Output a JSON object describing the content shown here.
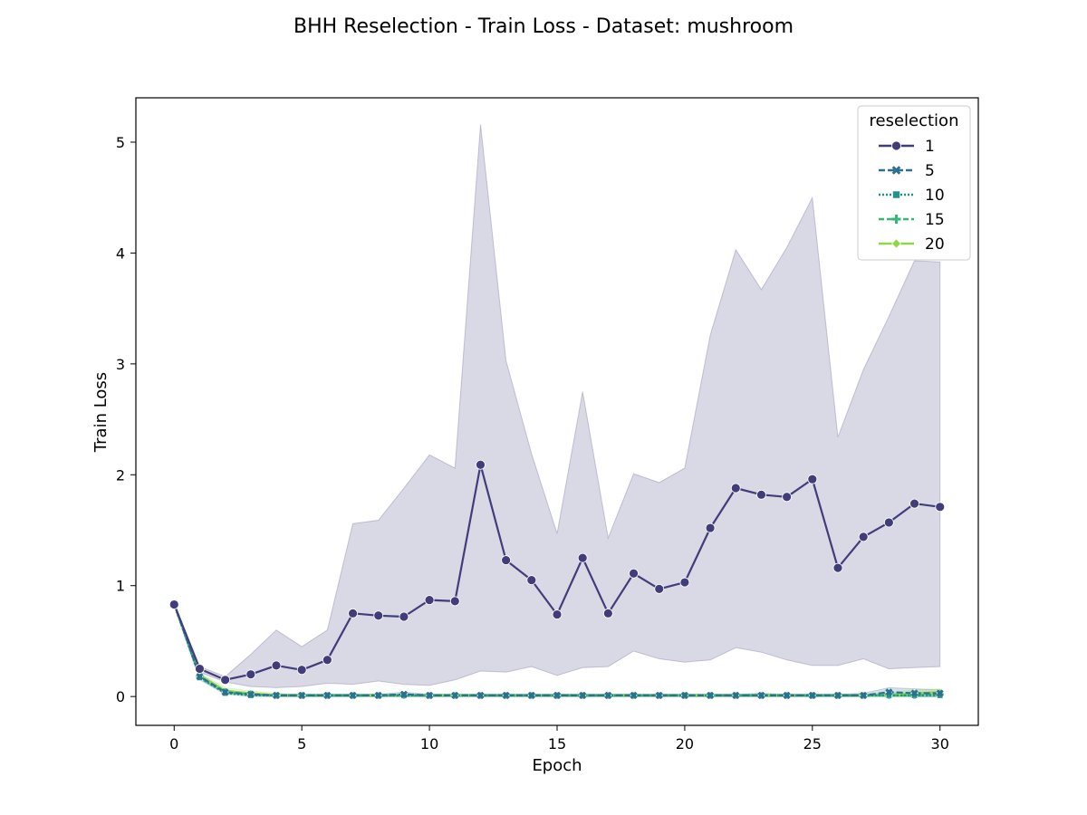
{
  "chart_data": {
    "type": "line",
    "title": "BHH Reselection - Train Loss - Dataset: mushroom",
    "xlabel": "Epoch",
    "ylabel": "Train Loss",
    "xlim": [
      -1.5,
      31.5
    ],
    "ylim": [
      -0.26,
      5.4
    ],
    "xticks": [
      0,
      5,
      10,
      15,
      20,
      25,
      30
    ],
    "yticks": [
      0,
      1,
      2,
      3,
      4,
      5
    ],
    "grid": false,
    "legend": {
      "title": "reselection",
      "placement": "top-right"
    },
    "x": [
      0,
      1,
      2,
      3,
      4,
      5,
      6,
      7,
      8,
      9,
      10,
      11,
      12,
      13,
      14,
      15,
      16,
      17,
      18,
      19,
      20,
      21,
      22,
      23,
      24,
      25,
      26,
      27,
      28,
      29,
      30
    ],
    "series": [
      {
        "name": "1",
        "color": "#413d7b",
        "dash": "",
        "marker": "circle",
        "values": [
          0.83,
          0.25,
          0.15,
          0.2,
          0.28,
          0.24,
          0.33,
          0.75,
          0.73,
          0.72,
          0.87,
          0.86,
          2.09,
          1.23,
          1.05,
          0.74,
          1.25,
          0.75,
          1.11,
          0.97,
          1.03,
          1.52,
          1.88,
          1.82,
          1.8,
          1.96,
          1.16,
          1.44,
          1.57,
          1.74,
          1.71
        ],
        "ci_upper": [
          0.84,
          0.27,
          0.18,
          0.38,
          0.6,
          0.45,
          0.6,
          1.56,
          1.59,
          1.88,
          2.18,
          2.06,
          5.16,
          3.03,
          2.19,
          1.47,
          2.75,
          1.43,
          2.01,
          1.93,
          2.06,
          3.26,
          4.03,
          3.67,
          4.05,
          4.5,
          2.34,
          2.95,
          3.43,
          3.93,
          3.92
        ],
        "ci_lower": [
          0.82,
          0.22,
          0.13,
          0.09,
          0.08,
          0.09,
          0.12,
          0.11,
          0.14,
          0.11,
          0.1,
          0.15,
          0.23,
          0.22,
          0.27,
          0.19,
          0.26,
          0.27,
          0.41,
          0.34,
          0.31,
          0.33,
          0.44,
          0.4,
          0.33,
          0.28,
          0.28,
          0.34,
          0.25,
          0.26,
          0.27
        ]
      },
      {
        "name": "5",
        "color": "#2d6f8e",
        "dash": "7,3",
        "marker": "x",
        "values": [
          0.84,
          0.18,
          0.04,
          0.02,
          0.01,
          0.01,
          0.01,
          0.01,
          0.01,
          0.02,
          0.01,
          0.01,
          0.01,
          0.01,
          0.01,
          0.01,
          0.01,
          0.01,
          0.01,
          0.01,
          0.01,
          0.01,
          0.01,
          0.01,
          0.01,
          0.01,
          0.01,
          0.01,
          0.04,
          0.03,
          0.03
        ],
        "ci_upper": [
          0.85,
          0.2,
          0.06,
          0.03,
          0.02,
          0.02,
          0.02,
          0.02,
          0.02,
          0.04,
          0.02,
          0.02,
          0.02,
          0.02,
          0.02,
          0.02,
          0.02,
          0.02,
          0.02,
          0.02,
          0.02,
          0.02,
          0.02,
          0.03,
          0.02,
          0.02,
          0.02,
          0.03,
          0.08,
          0.07,
          0.06
        ],
        "ci_lower": [
          0.83,
          0.16,
          0.03,
          0.01,
          0.0,
          0.0,
          0.0,
          0.0,
          0.0,
          0.0,
          0.0,
          0.0,
          0.0,
          0.0,
          0.0,
          0.0,
          0.0,
          0.0,
          0.0,
          0.0,
          0.0,
          0.0,
          0.0,
          0.0,
          0.0,
          0.0,
          0.0,
          0.0,
          0.01,
          0.0,
          0.0
        ]
      },
      {
        "name": "10",
        "color": "#20918c",
        "dash": "2,2",
        "marker": "square",
        "values": [
          0.83,
          0.17,
          0.03,
          0.01,
          0.01,
          0.01,
          0.01,
          0.01,
          0.01,
          0.01,
          0.01,
          0.01,
          0.01,
          0.01,
          0.01,
          0.01,
          0.01,
          0.01,
          0.01,
          0.01,
          0.01,
          0.01,
          0.01,
          0.01,
          0.01,
          0.01,
          0.01,
          0.01,
          0.01,
          0.01,
          0.01
        ],
        "ci_upper": [
          0.84,
          0.19,
          0.04,
          0.02,
          0.02,
          0.02,
          0.02,
          0.02,
          0.02,
          0.02,
          0.02,
          0.02,
          0.02,
          0.02,
          0.02,
          0.02,
          0.02,
          0.02,
          0.02,
          0.02,
          0.02,
          0.02,
          0.02,
          0.02,
          0.02,
          0.02,
          0.02,
          0.02,
          0.02,
          0.02,
          0.02
        ],
        "ci_lower": [
          0.82,
          0.15,
          0.02,
          0.0,
          0.0,
          0.0,
          0.0,
          0.0,
          0.0,
          0.0,
          0.0,
          0.0,
          0.0,
          0.0,
          0.0,
          0.0,
          0.0,
          0.0,
          0.0,
          0.0,
          0.0,
          0.0,
          0.0,
          0.0,
          0.0,
          0.0,
          0.0,
          0.0,
          0.0,
          0.0,
          0.0
        ]
      },
      {
        "name": "15",
        "color": "#35b779",
        "dash": "6,3",
        "marker": "plus",
        "values": [
          0.83,
          0.18,
          0.04,
          0.02,
          0.01,
          0.01,
          0.01,
          0.01,
          0.01,
          0.01,
          0.01,
          0.01,
          0.01,
          0.01,
          0.01,
          0.01,
          0.01,
          0.01,
          0.01,
          0.01,
          0.01,
          0.01,
          0.01,
          0.01,
          0.01,
          0.01,
          0.01,
          0.01,
          0.01,
          0.01,
          0.02
        ],
        "ci_upper": [
          0.84,
          0.2,
          0.06,
          0.03,
          0.02,
          0.02,
          0.02,
          0.02,
          0.02,
          0.02,
          0.02,
          0.02,
          0.02,
          0.02,
          0.02,
          0.02,
          0.02,
          0.02,
          0.02,
          0.02,
          0.02,
          0.02,
          0.02,
          0.02,
          0.02,
          0.02,
          0.02,
          0.02,
          0.03,
          0.03,
          0.04
        ],
        "ci_lower": [
          0.82,
          0.16,
          0.03,
          0.01,
          0.0,
          0.0,
          0.0,
          0.0,
          0.0,
          0.0,
          0.0,
          0.0,
          0.0,
          0.0,
          0.0,
          0.0,
          0.0,
          0.0,
          0.0,
          0.0,
          0.0,
          0.0,
          0.0,
          0.0,
          0.0,
          0.0,
          0.0,
          0.0,
          0.0,
          0.0,
          0.0
        ]
      },
      {
        "name": "20",
        "color": "#8fd744",
        "dash": "",
        "marker": "diamond",
        "values": [
          0.84,
          0.19,
          0.05,
          0.03,
          0.01,
          0.01,
          0.01,
          0.01,
          0.01,
          0.01,
          0.01,
          0.01,
          0.01,
          0.01,
          0.01,
          0.01,
          0.01,
          0.01,
          0.01,
          0.01,
          0.01,
          0.01,
          0.01,
          0.01,
          0.01,
          0.01,
          0.01,
          0.01,
          0.01,
          0.03,
          0.04
        ],
        "ci_upper": [
          0.85,
          0.21,
          0.08,
          0.05,
          0.03,
          0.02,
          0.02,
          0.02,
          0.02,
          0.02,
          0.02,
          0.02,
          0.02,
          0.02,
          0.02,
          0.02,
          0.02,
          0.02,
          0.02,
          0.02,
          0.02,
          0.02,
          0.02,
          0.02,
          0.02,
          0.02,
          0.02,
          0.02,
          0.03,
          0.06,
          0.07
        ],
        "ci_lower": [
          0.83,
          0.17,
          0.03,
          0.01,
          0.0,
          0.0,
          0.0,
          0.0,
          0.0,
          0.0,
          0.0,
          0.0,
          0.0,
          0.0,
          0.0,
          0.0,
          0.0,
          0.0,
          0.0,
          0.0,
          0.0,
          0.0,
          0.0,
          0.0,
          0.0,
          0.0,
          0.0,
          0.0,
          0.0,
          0.0,
          0.01
        ]
      }
    ]
  }
}
